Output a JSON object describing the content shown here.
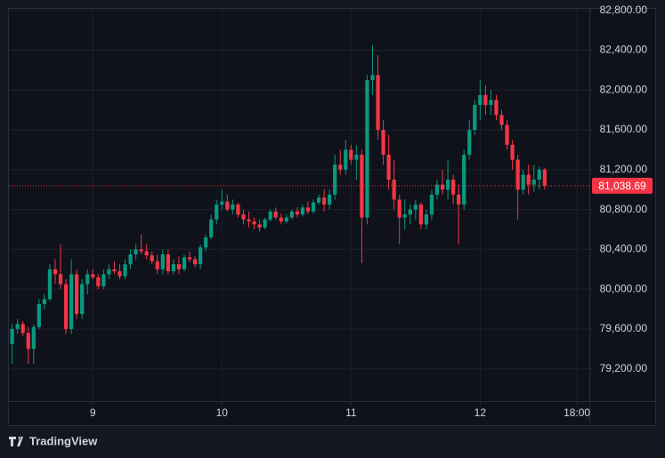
{
  "chart_data": {
    "type": "candlestick",
    "x": [
      -15,
      -14,
      -13,
      -12,
      -11,
      -10,
      -9,
      -8,
      -7,
      -6,
      -5,
      -4,
      -3,
      -2,
      -1,
      0,
      1,
      2,
      3,
      4,
      5,
      6,
      7,
      8,
      9,
      10,
      11,
      12,
      13,
      14,
      15,
      16,
      17,
      18,
      19,
      20,
      21,
      22,
      23,
      24,
      25,
      26,
      27,
      28,
      29,
      30,
      31,
      32,
      33,
      34,
      35,
      36,
      37,
      38,
      39,
      40,
      41,
      42,
      43,
      44,
      45,
      46,
      47,
      48,
      49,
      50,
      51,
      52,
      53,
      54,
      55,
      56,
      57,
      58,
      59,
      60,
      61,
      62,
      63,
      64,
      65,
      66,
      67,
      68,
      69,
      70,
      71,
      72,
      73,
      74,
      75,
      76,
      77,
      78,
      79,
      80,
      81,
      82,
      83,
      84
    ],
    "open": [
      79450,
      79600,
      79650,
      79560,
      79400,
      79620,
      79850,
      79900,
      80200,
      80150,
      80050,
      79600,
      80150,
      79750,
      80050,
      80150,
      80120,
      80030,
      80150,
      80200,
      80180,
      80130,
      80250,
      80350,
      80400,
      80380,
      80340,
      80280,
      80200,
      80350,
      80180,
      80250,
      80200,
      80320,
      80300,
      80250,
      80420,
      80520,
      80700,
      80850,
      80880,
      80800,
      80850,
      80750,
      80700,
      80680,
      80650,
      80620,
      80700,
      80780,
      80720,
      80680,
      80720,
      80780,
      80750,
      80820,
      80780,
      80870,
      80920,
      80850,
      80950,
      81250,
      81200,
      81400,
      81300,
      81350,
      80720,
      82100,
      82150,
      81600,
      81350,
      81100,
      80900,
      80720,
      80750,
      80800,
      80850,
      80650,
      80750,
      80950,
      81050,
      81000,
      81100,
      80950,
      80850,
      81350,
      81600,
      81850,
      81950,
      81850,
      81900,
      81750,
      81650,
      81450,
      81300,
      81000,
      81150,
      81050,
      81100,
      81200
    ],
    "high": [
      79650,
      79700,
      79680,
      79620,
      79650,
      79900,
      79950,
      80250,
      80300,
      80450,
      80100,
      80300,
      80200,
      80100,
      80200,
      80200,
      80150,
      80200,
      80250,
      80280,
      80250,
      80300,
      80400,
      80450,
      80550,
      80450,
      80380,
      80350,
      80400,
      80400,
      80300,
      80330,
      80350,
      80380,
      80330,
      80450,
      80550,
      80750,
      80900,
      81000,
      80950,
      80900,
      80870,
      80800,
      80780,
      80720,
      80700,
      80720,
      80800,
      80820,
      80760,
      80750,
      80800,
      80820,
      80850,
      80880,
      80900,
      80950,
      81000,
      81000,
      81350,
      81400,
      81500,
      81450,
      81450,
      81400,
      82150,
      82450,
      82350,
      81700,
      81550,
      81300,
      80950,
      80900,
      80850,
      80900,
      80870,
      80800,
      81000,
      81100,
      81200,
      81300,
      81150,
      81050,
      81400,
      81700,
      81900,
      82100,
      82050,
      82000,
      81950,
      81800,
      81700,
      81500,
      81350,
      81200,
      81250,
      81250,
      81230,
      81220
    ],
    "low": [
      79250,
      79550,
      79530,
      79250,
      79250,
      79600,
      79800,
      79880,
      80050,
      80000,
      79550,
      79550,
      79700,
      79700,
      79950,
      80100,
      80000,
      80000,
      80100,
      80150,
      80100,
      80100,
      80200,
      80300,
      80350,
      80300,
      80250,
      80150,
      80150,
      80150,
      80150,
      80150,
      80180,
      80270,
      80220,
      80200,
      80380,
      80500,
      80650,
      80800,
      80780,
      80750,
      80720,
      80650,
      80620,
      80600,
      80580,
      80600,
      80680,
      80700,
      80650,
      80660,
      80700,
      80720,
      80730,
      80750,
      80760,
      80850,
      80780,
      80800,
      80900,
      81150,
      81150,
      81250,
      81100,
      80260,
      80650,
      81950,
      81500,
      81250,
      81000,
      80800,
      80450,
      80600,
      80650,
      80700,
      80600,
      80600,
      80700,
      80900,
      80950,
      80900,
      80850,
      80450,
      80800,
      81300,
      81550,
      81700,
      81750,
      81750,
      81700,
      81600,
      81400,
      81200,
      80700,
      80950,
      80950,
      80980,
      81000,
      81000
    ],
    "close": [
      79600,
      79650,
      79560,
      79400,
      79620,
      79850,
      79900,
      80200,
      80150,
      80050,
      79600,
      80150,
      79750,
      80050,
      80150,
      80120,
      80030,
      80150,
      80200,
      80180,
      80130,
      80250,
      80350,
      80400,
      80380,
      80340,
      80280,
      80200,
      80350,
      80180,
      80250,
      80200,
      80320,
      80300,
      80250,
      80420,
      80520,
      80700,
      80850,
      80880,
      80800,
      80850,
      80750,
      80700,
      80680,
      80650,
      80620,
      80700,
      80780,
      80720,
      80680,
      80720,
      80780,
      80750,
      80820,
      80780,
      80870,
      80920,
      80850,
      80950,
      81250,
      81200,
      81400,
      81300,
      81350,
      80720,
      82100,
      82150,
      81600,
      81350,
      81100,
      80900,
      80720,
      80750,
      80800,
      80850,
      80650,
      80750,
      80950,
      81050,
      81000,
      81100,
      80950,
      80850,
      81350,
      81600,
      81850,
      81950,
      81850,
      81900,
      81750,
      81650,
      81450,
      81300,
      81000,
      81150,
      81050,
      81100,
      81200,
      81038.69
    ],
    "up_color": "#089981",
    "down_color": "#f23645",
    "xlim": [
      -15.6,
      92.3
    ],
    "xticks": [
      {
        "value": 0,
        "label": "9"
      },
      {
        "value": 24,
        "label": "10"
      },
      {
        "value": 48,
        "label": "11"
      },
      {
        "value": 72,
        "label": "12"
      },
      {
        "value": 90,
        "label": "18:00"
      }
    ],
    "ylim": [
      78876,
      82815
    ],
    "yticks": [
      {
        "value": 79200,
        "label": "79,200.00"
      },
      {
        "value": 79600,
        "label": "79,600.00"
      },
      {
        "value": 80000,
        "label": "80,000.00"
      },
      {
        "value": 80400,
        "label": "80,400.00"
      },
      {
        "value": 80800,
        "label": "80,800.00"
      },
      {
        "value": 81200,
        "label": "81,200.00"
      },
      {
        "value": 81600,
        "label": "81,600.00"
      },
      {
        "value": 82000,
        "label": "82,000.00"
      },
      {
        "value": 82400,
        "label": "82,400.00"
      },
      {
        "value": 82800,
        "label": "82,800.00"
      }
    ],
    "grid": true,
    "last_price": {
      "value": 81038.69,
      "label": "81,038.69"
    }
  },
  "brand": "TradingView"
}
